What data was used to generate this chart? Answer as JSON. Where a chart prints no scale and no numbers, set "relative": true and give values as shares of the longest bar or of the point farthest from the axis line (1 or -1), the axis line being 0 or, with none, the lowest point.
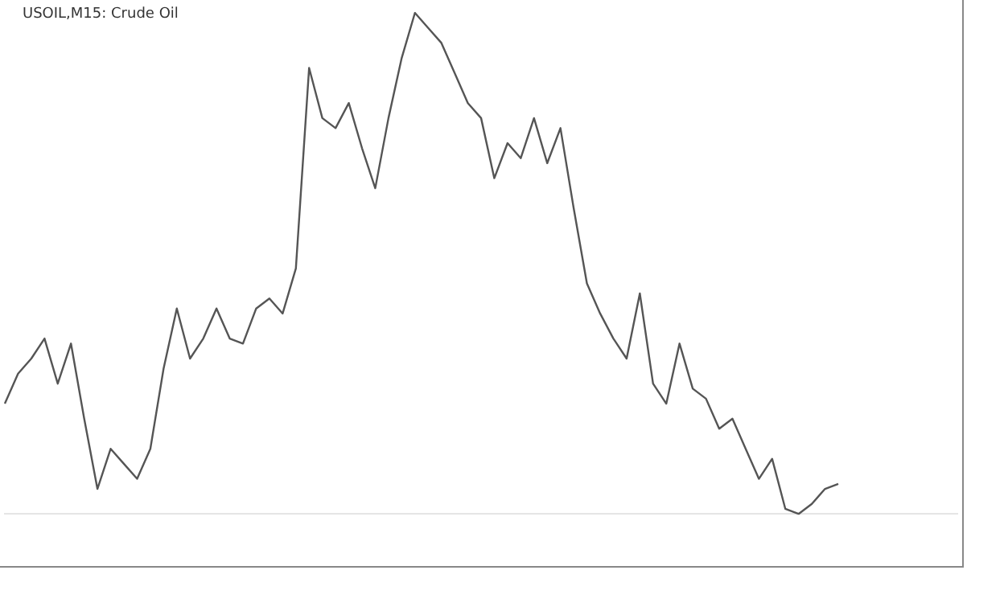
{
  "chart_data": {
    "type": "line",
    "title": "USOIL,M15: Crude Oil",
    "relative": true,
    "legend": false,
    "marker": "none",
    "line_style": "solid",
    "categories": [
      null,
      null,
      null,
      null,
      null,
      null,
      null,
      null,
      null,
      null,
      null,
      null,
      null,
      null,
      null,
      null,
      null,
      null,
      null,
      null,
      null,
      null,
      null,
      null,
      null,
      null,
      null,
      null,
      null,
      null,
      null,
      null,
      null,
      null,
      null,
      null,
      null,
      null,
      null,
      null,
      null,
      null,
      null,
      null,
      null,
      null,
      null,
      null,
      null,
      null,
      null,
      null,
      null,
      null,
      null,
      null,
      null,
      null,
      null,
      null,
      null,
      null,
      null,
      null,
      null,
      null,
      null,
      null,
      null,
      null,
      null,
      null,
      null
    ],
    "series": [
      {
        "color": "#555555",
        "values": [
          0.22,
          0.28,
          0.31,
          0.35,
          0.26,
          0.34,
          0.19,
          0.05,
          0.13,
          0.1,
          0.07,
          0.13,
          0.29,
          0.41,
          0.31,
          0.35,
          0.41,
          0.35,
          0.34,
          0.41,
          0.43,
          0.4,
          0.49,
          0.89,
          0.79,
          0.77,
          0.82,
          0.73,
          0.65,
          0.79,
          0.91,
          1,
          0.97,
          0.94,
          0.88,
          0.82,
          0.79,
          0.67,
          0.74,
          0.71,
          0.79,
          0.7,
          0.77,
          0.61,
          0.46,
          0.4,
          0.35,
          0.31,
          0.44,
          0.26,
          0.22,
          0.34,
          0.25,
          0.23,
          0.17,
          0.19,
          0.13,
          0.07,
          0.11,
          0.01,
          0,
          0.02,
          0.05,
          0.06,
          null,
          null,
          null,
          null,
          null,
          null,
          null,
          null,
          null
        ]
      }
    ]
  }
}
